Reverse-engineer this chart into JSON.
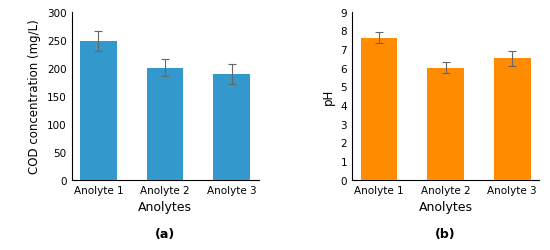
{
  "chart_a": {
    "categories": [
      "Anolyte 1",
      "Anolyte 2",
      "Anolyte 3"
    ],
    "values": [
      248,
      200,
      188
    ],
    "errors": [
      18,
      15,
      18
    ],
    "bar_color": "#3399CC",
    "ylabel": "COD concentration (mg/L)",
    "xlabel": "Anolytes",
    "ylim": [
      0,
      300
    ],
    "yticks": [
      0,
      50,
      100,
      150,
      200,
      250,
      300
    ],
    "label": "(a)"
  },
  "chart_b": {
    "categories": [
      "Anolyte 1",
      "Anolyte 2",
      "Anolyte 3"
    ],
    "values": [
      7.6,
      6.0,
      6.5
    ],
    "errors": [
      0.3,
      0.3,
      0.4
    ],
    "bar_color": "#FF8C00",
    "ylabel": "pH",
    "xlabel": "Anolytes",
    "ylim": [
      0,
      9
    ],
    "yticks": [
      0,
      1,
      2,
      3,
      4,
      5,
      6,
      7,
      8,
      9
    ],
    "label": "(b)"
  },
  "background_color": "#ffffff",
  "error_color": "#666666",
  "tick_fontsize": 7.5,
  "label_fontsize": 8.5,
  "xlabel_fontsize": 9,
  "subplot_label_fontsize": 9
}
